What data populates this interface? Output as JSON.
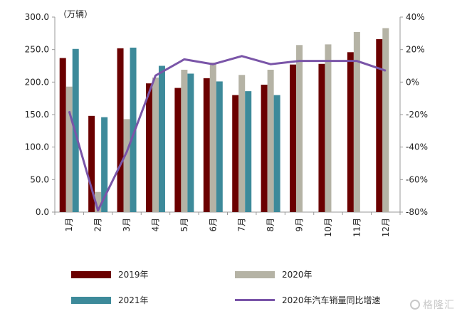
{
  "chart_data": {
    "type": "bar",
    "categories": [
      "1月",
      "2月",
      "3月",
      "4月",
      "5月",
      "6月",
      "7月",
      "8月",
      "9月",
      "10月",
      "11月",
      "12月"
    ],
    "series": [
      {
        "name": "2019年",
        "values": [
          237,
          148,
          252,
          198,
          191,
          206,
          180,
          196,
          227,
          228,
          246,
          266
        ]
      },
      {
        "name": "2020年",
        "values": [
          193,
          31,
          143,
          207,
          219,
          230,
          211,
          219,
          257,
          258,
          277,
          283
        ]
      },
      {
        "name": "2021年",
        "values": [
          251,
          146,
          253,
          225,
          213,
          201,
          186,
          180,
          null,
          null,
          null,
          null
        ]
      }
    ],
    "line_series": {
      "name": "2020年汽车销量同比增速",
      "axis": "right",
      "values": [
        -18,
        -79,
        -43,
        4,
        14,
        11,
        16,
        11,
        13,
        13,
        13,
        7
      ]
    },
    "y_unit": "（万辆）",
    "ylim": [
      0,
      300
    ],
    "y2lim": [
      -80,
      40
    ],
    "y_ticks": [
      "0.0",
      "50.0",
      "100.0",
      "150.0",
      "200.0",
      "250.0",
      "300.0"
    ],
    "y2_ticks": [
      "-80%",
      "-60%",
      "-40%",
      "-20%",
      "0%",
      "20%",
      "40%"
    ],
    "colors": {
      "2019年": "#6b0000",
      "2020年": "#b5b3a5",
      "2021年": "#3d8a9a",
      "line": "#7a55a8"
    },
    "grid": false,
    "legend_position": "bottom"
  },
  "watermark": "格隆汇"
}
